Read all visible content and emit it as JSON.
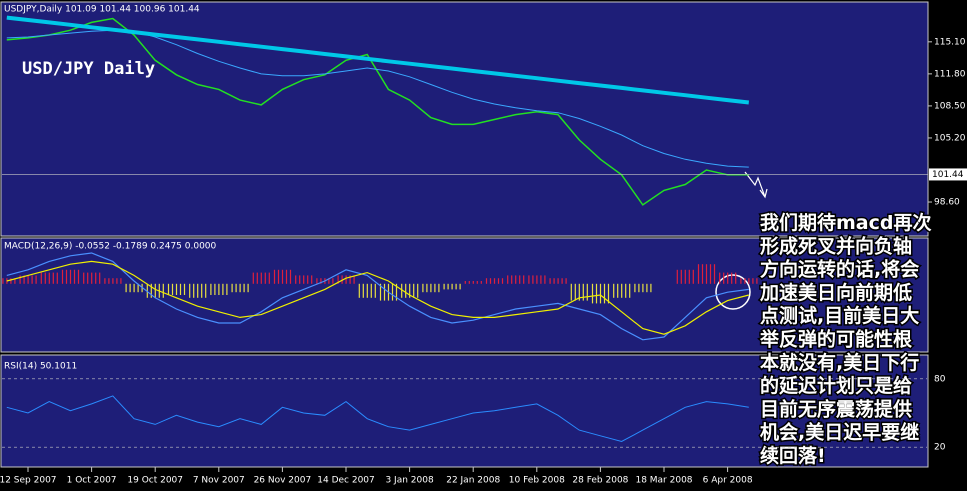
{
  "chart_data": [
    {
      "type": "line",
      "title": "USDJPY,Daily  101.09 101.44 100.96 101.44",
      "annotation": "USD/JPY Daily",
      "ylim": [
        95.1,
        119.1
      ],
      "yticks": [
        {
          "value": 98.6,
          "label": "98.60"
        },
        {
          "value": 105.2,
          "label": "105.20"
        },
        {
          "value": 108.5,
          "label": "108.50"
        },
        {
          "value": 111.8,
          "label": "111.80"
        },
        {
          "value": 115.1,
          "label": "115.10"
        }
      ],
      "last_price": 101.44,
      "grid": false,
      "series": [
        {
          "color": "#22e022",
          "width": 1.5,
          "values": [
            115.3,
            115.5,
            115.8,
            116.3,
            117.1,
            117.5,
            115.8,
            113.2,
            111.7,
            110.7,
            110.2,
            109.1,
            108.6,
            110.2,
            111.2,
            111.7,
            113.2,
            113.8,
            110.2,
            109.1,
            107.3,
            106.6,
            106.6,
            107.1,
            107.6,
            107.9,
            107.6,
            105.0,
            103.0,
            101.4,
            98.3,
            99.8,
            100.4,
            101.9,
            101.4,
            101.4
          ]
        },
        {
          "color": "#3aa8ff",
          "width": 1,
          "values": [
            115.5,
            115.6,
            115.8,
            116.0,
            116.2,
            116.3,
            116.2,
            115.6,
            114.8,
            113.9,
            113.1,
            112.4,
            111.8,
            111.6,
            111.6,
            111.8,
            112.1,
            112.4,
            112.1,
            111.5,
            110.7,
            109.9,
            109.2,
            108.7,
            108.3,
            108.0,
            107.8,
            107.2,
            106.4,
            105.5,
            104.4,
            103.6,
            103.0,
            102.6,
            102.3,
            102.2
          ]
        },
        {
          "color": "#00c8e8",
          "width": 4,
          "values": [
            117.6,
            117.35,
            117.1,
            116.85,
            116.6,
            116.35,
            116.1,
            115.85,
            115.6,
            115.35,
            115.1,
            114.85,
            114.6,
            114.35,
            114.1,
            113.85,
            113.6,
            113.35,
            113.1,
            112.85,
            112.6,
            112.35,
            112.1,
            111.85,
            111.6,
            111.35,
            111.1,
            110.85,
            110.6,
            110.35,
            110.1,
            109.85,
            109.6,
            109.35,
            109.1,
            108.85
          ]
        }
      ]
    },
    {
      "type": "combo",
      "title": "MACD(12,26,9) -0.0552 -0.1789 0.2475 0.0000",
      "ylim": [
        -2.4,
        1.6
      ],
      "series": [
        {
          "kind": "bar",
          "color": "#e0203c",
          "negative_color": "#e8e040",
          "values": [
            0.2,
            0.3,
            0.4,
            0.5,
            0.4,
            0.2,
            -0.3,
            -0.5,
            -0.4,
            -0.5,
            -0.4,
            -0.3,
            0.4,
            0.5,
            0.3,
            0.2,
            0.3,
            -0.5,
            -0.6,
            -0.5,
            -0.3,
            -0.2,
            0.1,
            0.2,
            0.3,
            0.3,
            0.2,
            -0.6,
            -0.7,
            -0.5,
            -0.3,
            0.0,
            0.5,
            0.7,
            0.4,
            0.2
          ]
        },
        {
          "kind": "line",
          "color": "#4a90ff",
          "values": [
            0.3,
            0.5,
            0.8,
            1.0,
            1.1,
            0.8,
            0.1,
            -0.5,
            -0.9,
            -1.2,
            -1.4,
            -1.4,
            -1.0,
            -0.5,
            -0.2,
            0.1,
            0.5,
            0.3,
            -0.3,
            -0.8,
            -1.2,
            -1.4,
            -1.3,
            -1.1,
            -0.9,
            -0.8,
            -0.7,
            -0.9,
            -1.1,
            -1.6,
            -2.0,
            -1.9,
            -1.2,
            -0.5,
            -0.3,
            -0.2
          ]
        },
        {
          "kind": "line",
          "color": "#f0f000",
          "values": [
            0.1,
            0.3,
            0.5,
            0.7,
            0.8,
            0.7,
            0.3,
            -0.2,
            -0.5,
            -0.8,
            -1.0,
            -1.2,
            -1.1,
            -0.8,
            -0.5,
            -0.2,
            0.2,
            0.4,
            0.1,
            -0.4,
            -0.8,
            -1.1,
            -1.2,
            -1.2,
            -1.1,
            -1.0,
            -0.9,
            -0.5,
            -0.4,
            -1.0,
            -1.6,
            -1.8,
            -1.5,
            -1.0,
            -0.6,
            -0.4
          ]
        }
      ]
    },
    {
      "type": "line",
      "title": "RSI(14) 50.1011",
      "ylim": [
        0,
        100
      ],
      "yticks": [
        20,
        80
      ],
      "grid": true,
      "categories": [
        null,
        "12 Sep 2007",
        null,
        null,
        "1 Oct 2007",
        null,
        null,
        "19 Oct 2007",
        null,
        null,
        "7 Nov 2007",
        null,
        null,
        "26 Nov 2007",
        null,
        null,
        "14 Dec 2007",
        null,
        null,
        "3 Jan 2008",
        null,
        null,
        "22 Jan 2008",
        null,
        null,
        "10 Feb 2008",
        null,
        null,
        "28 Feb 2008",
        null,
        null,
        "18 Mar 2008",
        null,
        null,
        "6 Apr 2008",
        null
      ],
      "series": [
        {
          "color": "#2a8cff",
          "width": 1,
          "values": [
            55,
            50,
            60,
            52,
            58,
            65,
            45,
            40,
            48,
            42,
            38,
            45,
            40,
            55,
            50,
            48,
            60,
            45,
            38,
            35,
            40,
            45,
            50,
            52,
            55,
            58,
            48,
            35,
            30,
            25,
            35,
            45,
            55,
            60,
            58,
            55
          ]
        }
      ]
    }
  ],
  "note": [
    "我们期待macd再次",
    "形成死叉并向负轴",
    "方向运转的话,将会",
    "加速美日向前期低",
    "点测试,目前美日大",
    "举反弹的可能性根",
    "本就没有,美日下行",
    "的延迟计划只是给",
    "目前无序震荡提供",
    "机会,美日迟早要继",
    "续回落!"
  ]
}
